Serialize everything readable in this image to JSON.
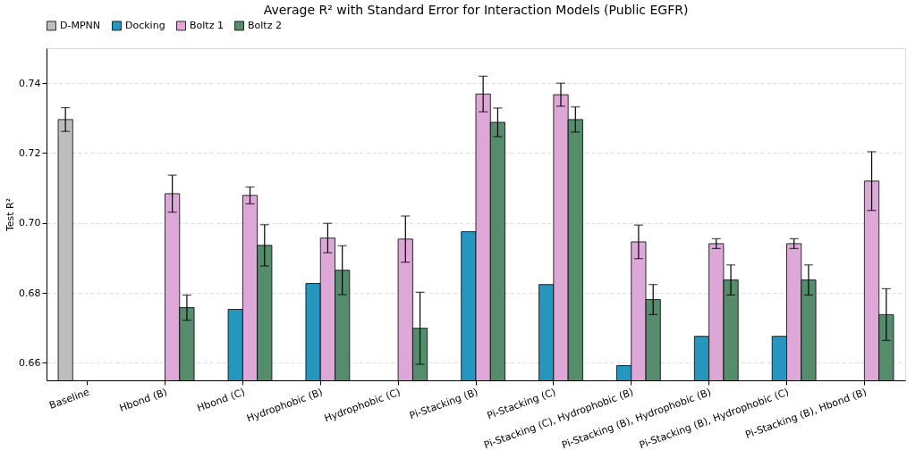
{
  "chart_data": {
    "type": "bar",
    "title": "Average R² with Standard Error for Interaction Models (Public EGFR)",
    "ylabel": "Test R²",
    "categories": [
      "Baseline",
      "Hbond (B)",
      "Hbond (C)",
      "Hydrophobic (B)",
      "Hydrophobic (C)",
      "Pi-Stacking (B)",
      "Pi-Stacking (C)",
      "Pi-Stacking (C), Hydrophobic (B)",
      "Pi-Stacking (B), Hydrophobic (B)",
      "Pi-Stacking (B), Hydrophobic (C)",
      "Pi-Stacking (B), Hbond (B)"
    ],
    "series": [
      {
        "name": "D-MPNN",
        "color": "#bdbdbd",
        "values": [
          0.7296,
          null,
          null,
          null,
          null,
          null,
          null,
          null,
          null,
          null,
          null
        ],
        "errors": [
          0.0034,
          null,
          null,
          null,
          null,
          null,
          null,
          null,
          null,
          null,
          null
        ]
      },
      {
        "name": "Docking",
        "color": "#2596be",
        "values": [
          null,
          null,
          0.6753,
          0.6827,
          null,
          0.6975,
          0.6824,
          0.6592,
          0.6676,
          0.6676,
          null
        ]
      },
      {
        "name": "Boltz 1",
        "color": "#dda7d8",
        "values": [
          null,
          0.7084,
          0.7079,
          0.6957,
          0.6954,
          0.7369,
          0.7367,
          0.6946,
          0.6941,
          0.6941,
          0.712
        ],
        "errors": [
          null,
          0.0053,
          0.0024,
          0.0042,
          0.0066,
          0.0051,
          0.0033,
          0.0048,
          0.0014,
          0.0014,
          0.0084
        ]
      },
      {
        "name": "Boltz 2",
        "color": "#548c6c",
        "values": [
          null,
          0.6758,
          0.6936,
          0.6865,
          0.6699,
          0.7288,
          0.7296,
          0.6781,
          0.6837,
          0.6837,
          0.6738
        ],
        "errors": [
          null,
          0.0036,
          0.0059,
          0.007,
          0.0103,
          0.0041,
          0.0036,
          0.0043,
          0.0043,
          0.0043,
          0.0074
        ]
      }
    ],
    "ylim": [
      0.655,
      0.75
    ],
    "yticks": [
      0.66,
      0.68,
      {
        "value": 0.7,
        "label": "0.70"
      },
      0.72,
      0.74
    ],
    "grid": "y",
    "legend": "top"
  }
}
